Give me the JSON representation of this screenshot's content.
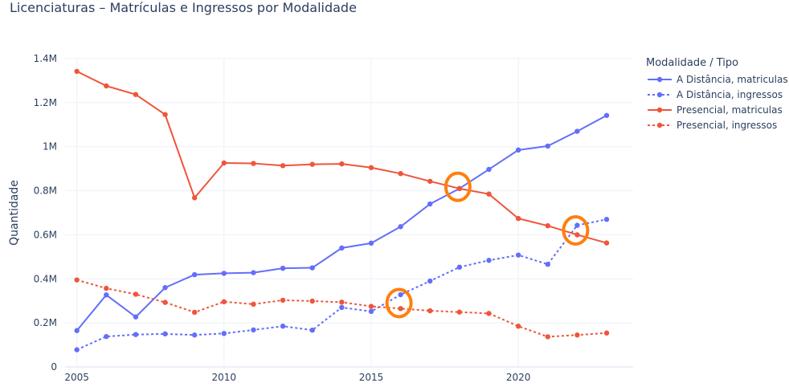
{
  "chart_data": {
    "type": "line",
    "title": "Licenciaturas – Matrículas e Ingressos por Modalidade",
    "xlabel": "",
    "ylabel": "Quantidade",
    "x": [
      2005,
      2006,
      2007,
      2008,
      2009,
      2010,
      2011,
      2012,
      2013,
      2014,
      2015,
      2016,
      2017,
      2018,
      2019,
      2020,
      2021,
      2022,
      2023
    ],
    "xlim": [
      2004.6,
      2023.9
    ],
    "ylim": [
      0,
      1400000
    ],
    "x_ticks": [
      {
        "value": 2005,
        "label": "2005"
      },
      {
        "value": 2010,
        "label": "2010"
      },
      {
        "value": 2015,
        "label": "2015"
      },
      {
        "value": 2020,
        "label": "2020"
      }
    ],
    "y_ticks": [
      {
        "value": 0,
        "label": "0"
      },
      {
        "value": 200000,
        "label": "0.2M"
      },
      {
        "value": 400000,
        "label": "0.4M"
      },
      {
        "value": 600000,
        "label": "0.6M"
      },
      {
        "value": 800000,
        "label": "0.8M"
      },
      {
        "value": 1000000,
        "label": "1M"
      },
      {
        "value": 1200000,
        "label": "1.2M"
      },
      {
        "value": 1400000,
        "label": "1.4M"
      }
    ],
    "grid": true,
    "legend": {
      "title": "Modalidade / Tipo",
      "position": "right"
    },
    "series": [
      {
        "name": "A Distância, matriculas",
        "color": "#636efa",
        "dash": "solid",
        "values": [
          165000,
          327000,
          227000,
          360000,
          419000,
          425000,
          428000,
          448000,
          450000,
          540000,
          562000,
          637000,
          740000,
          810000,
          897000,
          985000,
          1003000,
          1070000,
          1142000
        ]
      },
      {
        "name": "A Distância, ingressos",
        "color": "#636efa",
        "dash": "dot",
        "values": [
          78000,
          138000,
          147000,
          150000,
          145000,
          152000,
          168000,
          185000,
          167000,
          270000,
          252000,
          328000,
          390000,
          453000,
          484000,
          508000,
          466000,
          643000,
          670000
        ]
      },
      {
        "name": "Presencial, matriculas",
        "color": "#ef553b",
        "dash": "solid",
        "values": [
          1342000,
          1276000,
          1237000,
          1146000,
          768000,
          926000,
          924000,
          914000,
          920000,
          922000,
          905000,
          878000,
          843000,
          810000,
          785000,
          674000,
          641000,
          600000,
          563000
        ]
      },
      {
        "name": "Presencial, ingressos",
        "color": "#ef553b",
        "dash": "dot",
        "values": [
          395000,
          357000,
          330000,
          293000,
          248000,
          296000,
          285000,
          303000,
          299000,
          294000,
          275000,
          265000,
          255000,
          249000,
          243000,
          185000,
          137000,
          145000,
          154000
        ]
      }
    ],
    "annotations": [
      {
        "type": "circle-highlight",
        "color": "#ff7f0e",
        "x": 2018,
        "y": 818000
      },
      {
        "type": "circle-highlight",
        "color": "#ff7f0e",
        "x": 2022,
        "y": 620000
      },
      {
        "type": "circle-highlight",
        "color": "#ff7f0e",
        "x": 2016,
        "y": 290000
      }
    ]
  }
}
